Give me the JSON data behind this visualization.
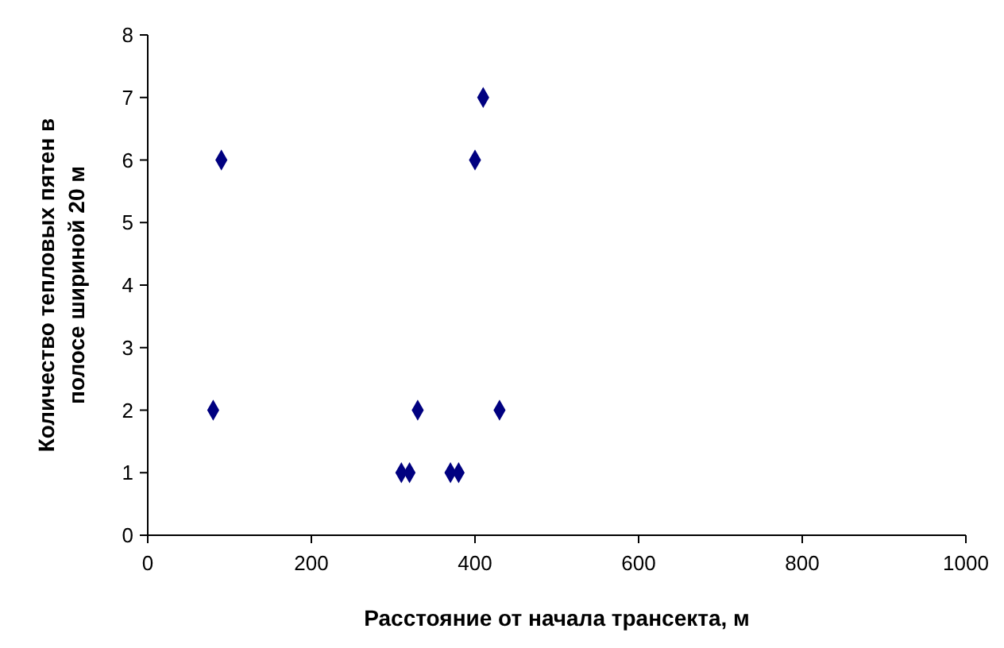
{
  "chart_data": {
    "type": "scatter",
    "xlabel": "Расстояние от  начала трансекта, м",
    "ylabel": "Количество тепловых пятен в полосе шириной 20 м",
    "x": [
      80,
      90,
      310,
      320,
      330,
      370,
      380,
      400,
      410,
      430
    ],
    "series": [
      {
        "color": "#000080",
        "values": [
          2,
          6,
          1,
          1,
          2,
          1,
          1,
          6,
          7,
          2
        ]
      }
    ],
    "xlim": [
      0,
      1000
    ],
    "xticks": [
      0,
      200,
      400,
      600,
      800,
      1000
    ],
    "ylim": [
      0,
      8
    ],
    "yticks": [
      0,
      1,
      2,
      3,
      4,
      5,
      6,
      7,
      8
    ],
    "grid": false,
    "marker": "diamond"
  }
}
